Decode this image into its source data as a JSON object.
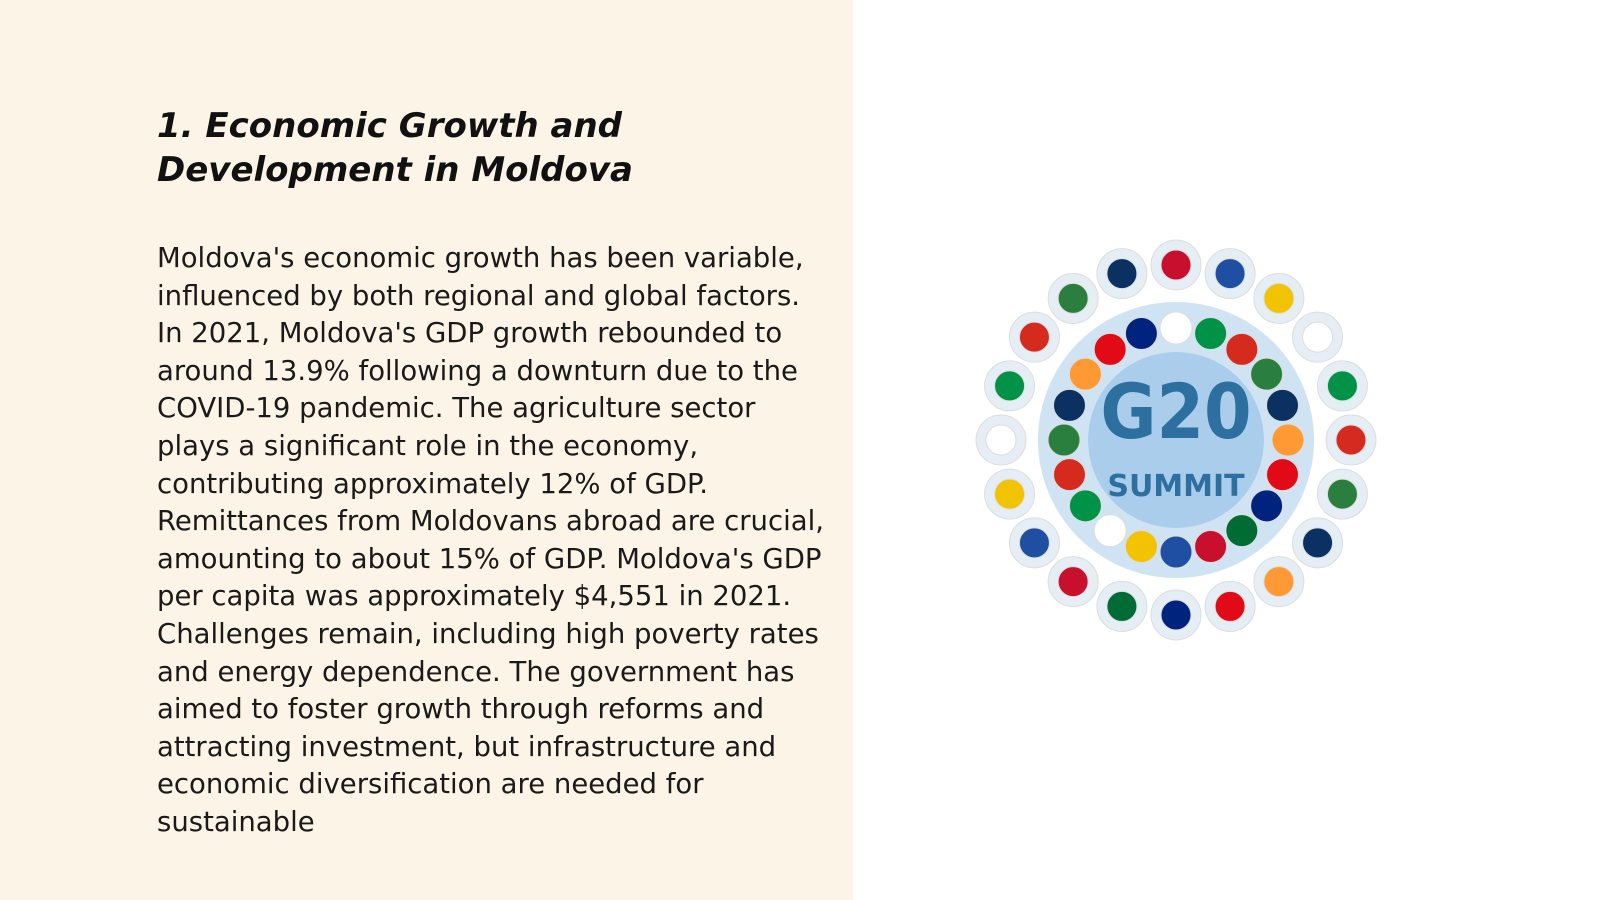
{
  "slide": {
    "title": "1. Economic Growth and Development in Moldova",
    "body": "Moldova's economic growth has been variable, influenced by both regional and global factors. In 2021, Moldova's GDP growth rebounded to around 13.9% following a downturn due to the COVID-19 pandemic. The agriculture sector plays a significant role in the economy, contributing approximately 12% of GDP. Remittances from Moldovans abroad are crucial, amounting to about 15% of GDP. Moldova's GDP per capita was approximately $4,551 in 2021. Challenges remain, including high poverty rates and energy dependence. The government has aimed to foster growth through reforms and attracting investment, but infrastructure and economic diversification are needed for sustainable",
    "image": {
      "title": "G20",
      "subtitle": "SUMMIT"
    }
  }
}
